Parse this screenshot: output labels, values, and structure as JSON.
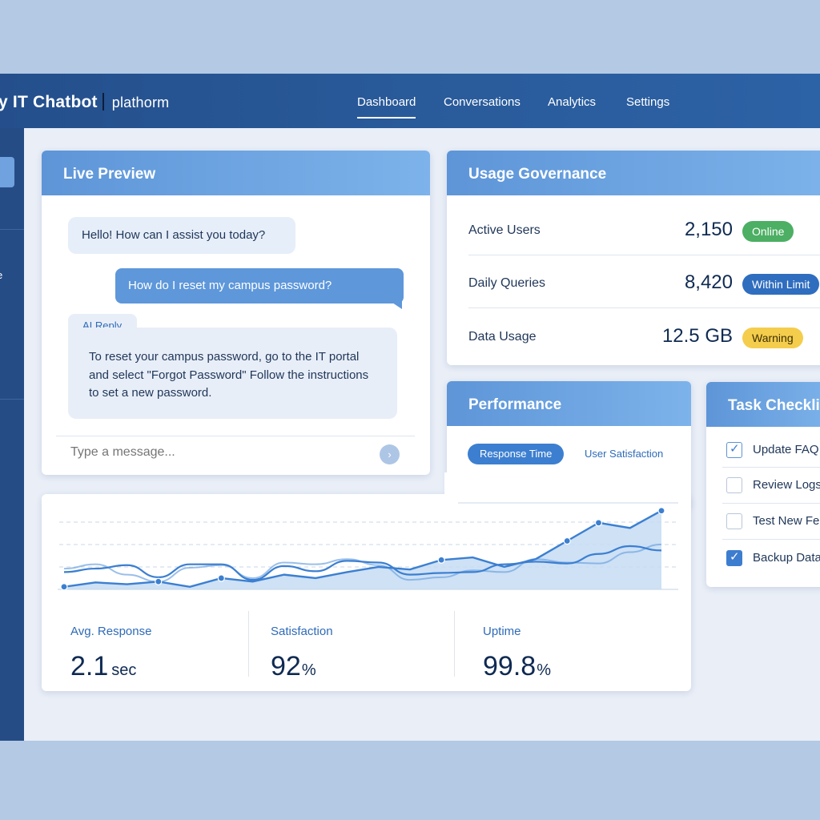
{
  "app": {
    "title": "y IT Chatbot",
    "subtitle": "plathorm"
  },
  "nav": {
    "items": [
      {
        "label": "Dashboard",
        "active": true
      },
      {
        "label": "Conversations",
        "active": false
      },
      {
        "label": "Analytics",
        "active": false
      },
      {
        "label": "Settings",
        "active": false
      }
    ]
  },
  "sidebar": {
    "fragment_text": "e"
  },
  "live_preview": {
    "title": "Live Preview",
    "bot_greeting": "Hello! How can I assist you today?",
    "user_message": "How do I reset my campus password?",
    "ai_tab_label": "AI Reply",
    "ai_reply": "To reset your campus password, go to the IT portal and select \"Forgot Password\" Follow the instructions to set a new password.",
    "input_placeholder": "Type a message...",
    "send_icon": "chevron-right-icon"
  },
  "usage_governance": {
    "title": "Usage Governance",
    "rows": [
      {
        "label": "Active Users",
        "value": "2,150",
        "badge": "Online",
        "badge_color": "#4caf63",
        "badge_text_color": "#ffffff"
      },
      {
        "label": "Daily Queries",
        "value": "8,420",
        "badge": "Within Limit",
        "badge_color": "#2f6dbf",
        "badge_text_color": "#ffffff"
      },
      {
        "label": "Data Usage",
        "value": "12.5 GB",
        "badge": "Warning",
        "badge_color": "#f5cd4c",
        "badge_text_color": "#3b2f05"
      }
    ]
  },
  "performance": {
    "title": "Performance",
    "active_tab": "Response Time",
    "other_tab": "User Satisfaction"
  },
  "chart_data": {
    "type": "line",
    "title": "",
    "xlabel": "",
    "ylabel": "",
    "grid": true,
    "series": [
      {
        "values": [
          3,
          8,
          6,
          9,
          3,
          13,
          9,
          17,
          13,
          20,
          26,
          23,
          34,
          37,
          26,
          35,
          56,
          77,
          71,
          91
        ]
      },
      {
        "values": [
          20,
          24,
          28,
          14,
          29,
          29,
          11,
          27,
          21,
          33,
          31,
          17,
          19,
          20,
          29,
          32,
          30,
          41,
          50,
          45
        ]
      },
      {
        "values": [
          24,
          29,
          17,
          9,
          25,
          28,
          13,
          31,
          29,
          35,
          28,
          11,
          14,
          22,
          20,
          35,
          31,
          30,
          43,
          52
        ]
      }
    ],
    "points": [
      3,
      9,
      13,
      33,
      34,
      52,
      76,
      92
    ],
    "colors": {
      "main": "#3b7fd1",
      "secondary": "#6fa4df",
      "fill": "#c6dcf3"
    }
  },
  "stats": [
    {
      "label": "Avg. Response",
      "value": "2.1",
      "unit": "sec"
    },
    {
      "label": "Satisfaction",
      "value": "92",
      "unit": "%"
    },
    {
      "label": "Uptime",
      "value": "99.8",
      "unit": "%"
    }
  ],
  "task_checklist": {
    "title": "Task Checklist",
    "items": [
      {
        "label": "Update FAQ",
        "state": "checked-light"
      },
      {
        "label": "Review Logs",
        "state": "unchecked"
      },
      {
        "label": "Test New Fe",
        "state": "unchecked"
      },
      {
        "label": "Backup Data",
        "state": "checked-solid"
      }
    ]
  }
}
